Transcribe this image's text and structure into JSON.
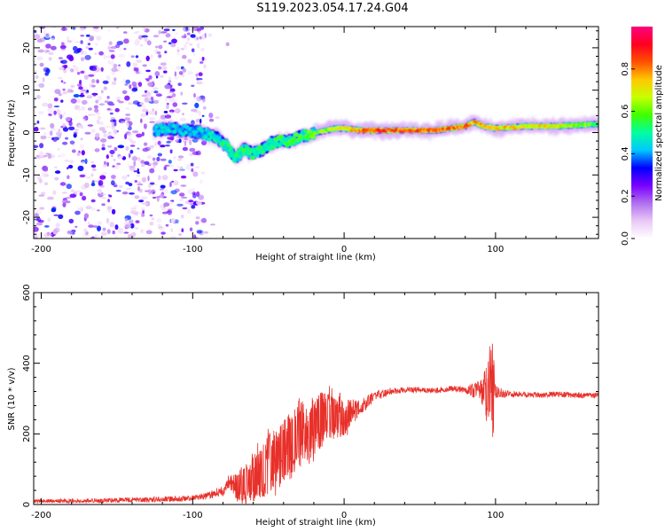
{
  "figure": {
    "title": "S119.2023.054.17.24.G04"
  },
  "chart_data": [
    {
      "type": "heatmap",
      "xlabel": "Height of straight line (km)",
      "ylabel": "Frequency (Hz)",
      "xlim": [
        -205,
        168
      ],
      "ylim": [
        -25,
        25
      ],
      "x_ticks": [
        -200,
        -100,
        0,
        100
      ],
      "y_ticks": [
        -20,
        -10,
        0,
        10,
        20
      ],
      "colorbar": {
        "label": "Normalized spectral amplitude",
        "range": [
          0.0,
          1.0
        ],
        "ticks": [
          0.0,
          0.2,
          0.4,
          0.6,
          0.8
        ],
        "colormap": [
          "#ffffff",
          "#e9c8f5",
          "#b070f0",
          "#7a00ff",
          "#0000ff",
          "#00c8ff",
          "#00ffa0",
          "#40ff00",
          "#c8ff00",
          "#ffc800",
          "#ff5000",
          "#ff0020",
          "#ff0080"
        ]
      },
      "ridge_center_frequency": {
        "x": [
          -125,
          -115,
          -105,
          -95,
          -85,
          -78,
          -72,
          -66,
          -60,
          -54,
          -48,
          -42,
          -36,
          -30,
          -24,
          -18,
          -12,
          -6,
          0,
          10,
          20,
          40,
          60,
          80,
          86,
          92,
          100,
          120,
          140,
          168
        ],
        "y": [
          0.5,
          1.0,
          0.5,
          0,
          -1.0,
          -3.0,
          -6.0,
          -4.0,
          -5.0,
          -4.0,
          -2.5,
          -2.0,
          -2.0,
          -1.0,
          -0.5,
          0,
          0.5,
          1.0,
          1.0,
          0.5,
          0.5,
          0.5,
          0.5,
          1.5,
          2.5,
          1.5,
          1.0,
          1.5,
          1.5,
          2.0
        ]
      },
      "ridge_amplitude": {
        "x": [
          -125,
          -95,
          -75,
          -50,
          -25,
          0,
          20,
          50,
          80,
          100,
          140,
          168
        ],
        "y": [
          0.35,
          0.35,
          0.45,
          0.45,
          0.5,
          0.65,
          0.85,
          0.8,
          0.75,
          0.7,
          0.65,
          0.5
        ]
      },
      "noise_region_x": [
        -205,
        -92
      ]
    },
    {
      "type": "line",
      "xlabel": "Height of straight line (km)",
      "ylabel": "SNR (10 * v/v)",
      "xlim": [
        -205,
        168
      ],
      "ylim": [
        0,
        600
      ],
      "x_ticks": [
        -200,
        -100,
        0,
        100
      ],
      "y_ticks": [
        0,
        200,
        400,
        600
      ],
      "color": "#e8302a",
      "series": [
        {
          "x": [
            -205,
            -180,
            -150,
            -120,
            -100,
            -90,
            -80,
            -75,
            -70,
            -60,
            -50,
            -40,
            -30,
            -20,
            -10,
            0,
            10,
            20,
            30,
            40,
            50,
            60,
            70,
            80,
            90,
            95,
            98,
            100,
            110,
            120,
            130,
            140,
            150,
            160,
            168
          ],
          "y": [
            10,
            10,
            12,
            15,
            18,
            25,
            40,
            65,
            50,
            70,
            115,
            145,
            190,
            225,
            250,
            245,
            275,
            305,
            320,
            325,
            325,
            322,
            328,
            325,
            322,
            325,
            320,
            318,
            312,
            312,
            310,
            312,
            310,
            308,
            310
          ],
          "noise_amplitude": [
            5,
            6,
            7,
            8,
            8,
            10,
            15,
            30,
            45,
            65,
            85,
            95,
            95,
            90,
            70,
            50,
            25,
            15,
            10,
            8,
            8,
            8,
            8,
            10,
            30,
            80,
            150,
            20,
            8,
            8,
            8,
            8,
            8,
            8,
            8
          ]
        }
      ]
    }
  ]
}
